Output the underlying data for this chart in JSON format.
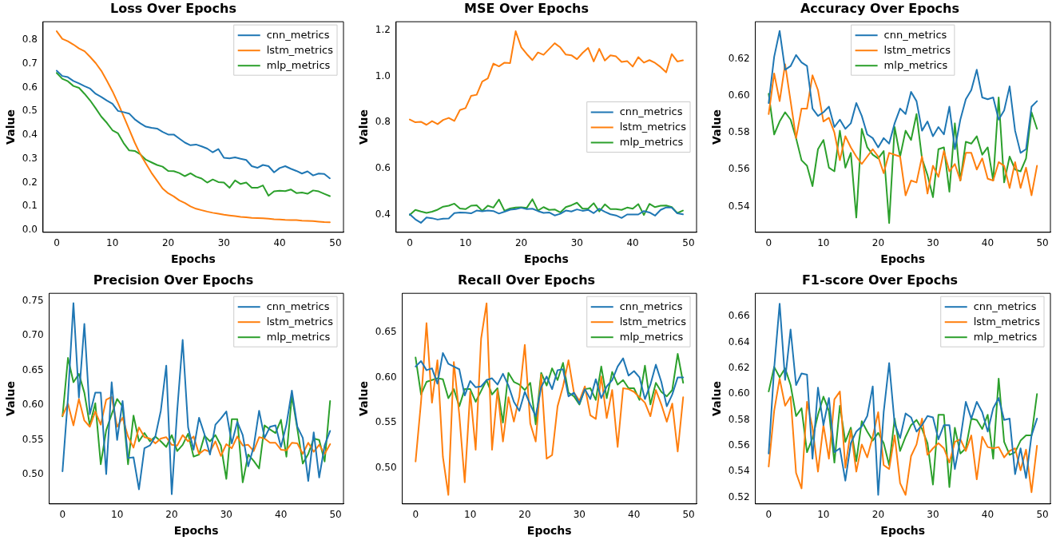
{
  "chart_data": [
    {
      "type": "line",
      "title": "Loss Over Epochs",
      "xlabel": "Epochs",
      "ylabel": "Value",
      "legend": "top right",
      "grid": false,
      "xlim": [
        -2.45,
        51.45
      ],
      "xticks": [
        0,
        10,
        20,
        30,
        40,
        50
      ],
      "ylim": [
        -0.009,
        0.876
      ],
      "yticks": [
        {
          "value": 0,
          "label": "0.0"
        },
        0.1,
        0.2,
        0.3,
        0.4,
        0.5,
        0.6,
        0.7,
        0.8
      ],
      "x": [
        0,
        1,
        2,
        3,
        4,
        5,
        6,
        7,
        8,
        9,
        10,
        11,
        12,
        13,
        14,
        15,
        16,
        17,
        18,
        19,
        20,
        21,
        22,
        23,
        24,
        25,
        26,
        27,
        28,
        29,
        30,
        31,
        32,
        33,
        34,
        35,
        36,
        37,
        38,
        39,
        40,
        41,
        42,
        43,
        44,
        45,
        46,
        47,
        48,
        49
      ],
      "series": [
        {
          "name": "cnn_metrics",
          "color": "#1f77b4",
          "values": [
            0.67,
            0.648,
            0.643,
            0.627,
            0.617,
            0.605,
            0.595,
            0.573,
            0.56,
            0.545,
            0.531,
            0.501,
            0.496,
            0.49,
            0.466,
            0.449,
            0.435,
            0.43,
            0.427,
            0.413,
            0.402,
            0.402,
            0.385,
            0.368,
            0.357,
            0.36,
            0.352,
            0.343,
            0.327,
            0.341,
            0.304,
            0.302,
            0.306,
            0.3,
            0.295,
            0.269,
            0.262,
            0.274,
            0.269,
            0.243,
            0.261,
            0.269,
            0.258,
            0.249,
            0.238,
            0.247,
            0.23,
            0.238,
            0.236,
            0.218
          ]
        },
        {
          "name": "lstm_metrics",
          "color": "#ff7f0e",
          "values": [
            0.836,
            0.804,
            0.794,
            0.78,
            0.764,
            0.752,
            0.728,
            0.702,
            0.67,
            0.628,
            0.584,
            0.534,
            0.479,
            0.424,
            0.368,
            0.319,
            0.28,
            0.241,
            0.208,
            0.175,
            0.155,
            0.142,
            0.125,
            0.114,
            0.1,
            0.09,
            0.084,
            0.078,
            0.073,
            0.069,
            0.065,
            0.062,
            0.059,
            0.056,
            0.054,
            0.052,
            0.051,
            0.05,
            0.048,
            0.046,
            0.045,
            0.043,
            0.042,
            0.042,
            0.04,
            0.039,
            0.038,
            0.036,
            0.034,
            0.033
          ]
        },
        {
          "name": "mlp_metrics",
          "color": "#2ca02c",
          "values": [
            0.661,
            0.636,
            0.626,
            0.606,
            0.598,
            0.573,
            0.545,
            0.512,
            0.477,
            0.451,
            0.42,
            0.407,
            0.366,
            0.335,
            0.333,
            0.319,
            0.296,
            0.285,
            0.274,
            0.267,
            0.249,
            0.248,
            0.24,
            0.227,
            0.239,
            0.225,
            0.217,
            0.2,
            0.213,
            0.202,
            0.2,
            0.178,
            0.209,
            0.194,
            0.2,
            0.178,
            0.178,
            0.188,
            0.145,
            0.163,
            0.166,
            0.164,
            0.171,
            0.156,
            0.158,
            0.153,
            0.167,
            0.163,
            0.153,
            0.143
          ]
        }
      ]
    },
    {
      "type": "line",
      "title": "MSE Over Epochs",
      "xlabel": "Epochs",
      "ylabel": "Value",
      "legend": "right",
      "grid": false,
      "xlim": [
        -2.45,
        51.45
      ],
      "xticks": [
        0,
        10,
        20,
        30,
        40,
        50
      ],
      "ylim": [
        0.325,
        1.236
      ],
      "yticks": [
        0.4,
        0.6,
        0.8,
        {
          "value": 1,
          "label": "1.0"
        },
        1.2
      ],
      "x": [
        0,
        1,
        2,
        3,
        4,
        5,
        6,
        7,
        8,
        9,
        10,
        11,
        12,
        13,
        14,
        15,
        16,
        17,
        18,
        19,
        20,
        21,
        22,
        23,
        24,
        25,
        26,
        27,
        28,
        29,
        30,
        31,
        32,
        33,
        34,
        35,
        36,
        37,
        38,
        39,
        40,
        41,
        42,
        43,
        44,
        45,
        46,
        47,
        48,
        49
      ],
      "series": [
        {
          "name": "cnn_metrics",
          "color": "#1f77b4",
          "values": [
            0.403,
            0.381,
            0.366,
            0.389,
            0.386,
            0.38,
            0.384,
            0.385,
            0.408,
            0.411,
            0.41,
            0.407,
            0.419,
            0.416,
            0.419,
            0.417,
            0.406,
            0.414,
            0.423,
            0.425,
            0.431,
            0.425,
            0.427,
            0.417,
            0.409,
            0.411,
            0.398,
            0.405,
            0.419,
            0.415,
            0.424,
            0.418,
            0.422,
            0.408,
            0.427,
            0.414,
            0.403,
            0.398,
            0.387,
            0.402,
            0.402,
            0.402,
            0.417,
            0.411,
            0.397,
            0.422,
            0.433,
            0.432,
            0.407,
            0.403
          ]
        },
        {
          "name": "lstm_metrics",
          "color": "#ff7f0e",
          "values": [
            0.813,
            0.801,
            0.803,
            0.79,
            0.806,
            0.793,
            0.811,
            0.82,
            0.807,
            0.854,
            0.862,
            0.915,
            0.92,
            0.977,
            0.991,
            1.055,
            1.043,
            1.059,
            1.057,
            1.195,
            1.126,
            1.096,
            1.07,
            1.103,
            1.093,
            1.118,
            1.143,
            1.125,
            1.094,
            1.091,
            1.074,
            1.101,
            1.123,
            1.064,
            1.119,
            1.068,
            1.091,
            1.086,
            1.062,
            1.066,
            1.042,
            1.083,
            1.059,
            1.07,
            1.058,
            1.04,
            1.017,
            1.096,
            1.064,
            1.069
          ]
        },
        {
          "name": "mlp_metrics",
          "color": "#2ca02c",
          "values": [
            0.4,
            0.422,
            0.415,
            0.409,
            0.414,
            0.423,
            0.436,
            0.44,
            0.449,
            0.428,
            0.425,
            0.44,
            0.442,
            0.418,
            0.44,
            0.432,
            0.467,
            0.418,
            0.428,
            0.432,
            0.433,
            0.431,
            0.468,
            0.419,
            0.434,
            0.422,
            0.424,
            0.411,
            0.434,
            0.442,
            0.453,
            0.427,
            0.427,
            0.451,
            0.415,
            0.446,
            0.425,
            0.425,
            0.422,
            0.432,
            0.427,
            0.447,
            0.4,
            0.448,
            0.434,
            0.44,
            0.441,
            0.434,
            0.408,
            0.419
          ]
        }
      ]
    },
    {
      "type": "line",
      "title": "Accuracy Over Epochs",
      "xlabel": "Epochs",
      "ylabel": "Value",
      "legend": "top",
      "grid": false,
      "xlim": [
        -2.45,
        51.45
      ],
      "xticks": [
        0,
        10,
        20,
        30,
        40,
        50
      ],
      "ylim": [
        0.526,
        0.64
      ],
      "yticks": [
        0.54,
        0.56,
        0.58,
        {
          "value": 0.6,
          "label": "0.60"
        },
        0.62
      ],
      "x": [
        0,
        1,
        2,
        3,
        4,
        5,
        6,
        7,
        8,
        9,
        10,
        11,
        12,
        13,
        14,
        15,
        16,
        17,
        18,
        19,
        20,
        21,
        22,
        23,
        24,
        25,
        26,
        27,
        28,
        29,
        30,
        31,
        32,
        33,
        34,
        35,
        36,
        37,
        38,
        39,
        40,
        41,
        42,
        43,
        44,
        45,
        46,
        47,
        48,
        49
      ],
      "series": [
        {
          "name": "cnn_metrics",
          "color": "#1f77b4",
          "values": [
            0.596,
            0.621,
            0.635,
            0.614,
            0.616,
            0.622,
            0.618,
            0.616,
            0.593,
            0.589,
            0.591,
            0.594,
            0.583,
            0.587,
            0.582,
            0.585,
            0.596,
            0.589,
            0.579,
            0.577,
            0.572,
            0.577,
            0.574,
            0.585,
            0.593,
            0.59,
            0.602,
            0.597,
            0.581,
            0.586,
            0.578,
            0.583,
            0.579,
            0.594,
            0.571,
            0.587,
            0.598,
            0.603,
            0.614,
            0.599,
            0.598,
            0.599,
            0.587,
            0.592,
            0.605,
            0.581,
            0.569,
            0.571,
            0.594,
            0.597
          ]
        },
        {
          "name": "lstm_metrics",
          "color": "#ff7f0e",
          "values": [
            0.59,
            0.612,
            0.597,
            0.617,
            0.597,
            0.577,
            0.593,
            0.593,
            0.611,
            0.603,
            0.586,
            0.588,
            0.58,
            0.565,
            0.578,
            0.572,
            0.567,
            0.563,
            0.567,
            0.571,
            0.567,
            0.558,
            0.569,
            0.568,
            0.567,
            0.546,
            0.554,
            0.553,
            0.567,
            0.547,
            0.562,
            0.556,
            0.57,
            0.559,
            0.563,
            0.554,
            0.569,
            0.569,
            0.56,
            0.566,
            0.555,
            0.554,
            0.564,
            0.562,
            0.55,
            0.564,
            0.55,
            0.561,
            0.546,
            0.562
          ]
        },
        {
          "name": "mlp_metrics",
          "color": "#2ca02c",
          "values": [
            0.601,
            0.579,
            0.586,
            0.591,
            0.587,
            0.577,
            0.565,
            0.562,
            0.551,
            0.571,
            0.576,
            0.561,
            0.559,
            0.581,
            0.561,
            0.569,
            0.534,
            0.582,
            0.572,
            0.568,
            0.566,
            0.57,
            0.531,
            0.583,
            0.567,
            0.581,
            0.576,
            0.59,
            0.566,
            0.557,
            0.545,
            0.571,
            0.572,
            0.548,
            0.585,
            0.554,
            0.575,
            0.574,
            0.578,
            0.568,
            0.572,
            0.554,
            0.599,
            0.553,
            0.567,
            0.56,
            0.559,
            0.566,
            0.591,
            0.582
          ]
        }
      ]
    },
    {
      "type": "line",
      "title": "Precision Over Epochs",
      "xlabel": "Epochs",
      "ylabel": "Value",
      "legend": "top right",
      "grid": false,
      "xlim": [
        -2.45,
        51.45
      ],
      "xticks": [
        0,
        10,
        20,
        30,
        40,
        50
      ],
      "ylim": [
        0.458,
        0.761
      ],
      "yticks": [
        {
          "value": 0.5,
          "label": "0.50"
        },
        0.55,
        {
          "value": 0.6,
          "label": "0.60"
        },
        0.65,
        {
          "value": 0.7,
          "label": "0.70"
        },
        0.75
      ],
      "x": [
        0,
        1,
        2,
        3,
        4,
        5,
        6,
        7,
        8,
        9,
        10,
        11,
        12,
        13,
        14,
        15,
        16,
        17,
        18,
        19,
        20,
        21,
        22,
        23,
        24,
        25,
        26,
        27,
        28,
        29,
        30,
        31,
        32,
        33,
        34,
        35,
        36,
        37,
        38,
        39,
        40,
        41,
        42,
        43,
        44,
        45,
        46,
        47,
        48,
        49
      ],
      "series": [
        {
          "name": "cnn_metrics",
          "color": "#1f77b4",
          "values": [
            0.505,
            0.611,
            0.747,
            0.611,
            0.717,
            0.587,
            0.618,
            0.618,
            0.501,
            0.633,
            0.55,
            0.606,
            0.524,
            0.525,
            0.479,
            0.538,
            0.542,
            0.555,
            0.592,
            0.657,
            0.472,
            0.592,
            0.694,
            0.568,
            0.536,
            0.582,
            0.558,
            0.529,
            0.572,
            0.581,
            0.591,
            0.545,
            0.576,
            0.557,
            0.512,
            0.54,
            0.592,
            0.553,
            0.569,
            0.571,
            0.54,
            0.572,
            0.621,
            0.569,
            0.553,
            0.491,
            0.561,
            0.496,
            0.542,
            0.563
          ]
        },
        {
          "name": "lstm_metrics",
          "color": "#ff7f0e",
          "values": [
            0.585,
            0.602,
            0.571,
            0.609,
            0.578,
            0.569,
            0.591,
            0.572,
            0.608,
            0.612,
            0.569,
            0.582,
            0.555,
            0.539,
            0.568,
            0.554,
            0.552,
            0.545,
            0.552,
            0.554,
            0.543,
            0.542,
            0.557,
            0.548,
            0.555,
            0.53,
            0.536,
            0.533,
            0.548,
            0.527,
            0.544,
            0.538,
            0.555,
            0.542,
            0.543,
            0.534,
            0.554,
            0.552,
            0.546,
            0.546,
            0.536,
            0.535,
            0.546,
            0.545,
            0.53,
            0.546,
            0.533,
            0.543,
            0.53,
            0.544
          ]
        },
        {
          "name": "mlp_metrics",
          "color": "#2ca02c",
          "values": [
            0.584,
            0.668,
            0.633,
            0.645,
            0.618,
            0.571,
            0.603,
            0.515,
            0.564,
            0.587,
            0.609,
            0.598,
            0.515,
            0.585,
            0.548,
            0.56,
            0.548,
            0.555,
            0.548,
            0.54,
            0.557,
            0.534,
            0.543,
            0.559,
            0.526,
            0.529,
            0.556,
            0.548,
            0.557,
            0.542,
            0.494,
            0.58,
            0.58,
            0.489,
            0.529,
            0.52,
            0.509,
            0.571,
            0.565,
            0.56,
            0.579,
            0.526,
            0.614,
            0.566,
            0.516,
            0.53,
            0.552,
            0.55,
            0.519,
            0.606
          ]
        }
      ]
    },
    {
      "type": "line",
      "title": "Recall Over Epochs",
      "xlabel": "Epochs",
      "ylabel": "Value",
      "legend": "top right",
      "grid": false,
      "xlim": [
        -2.45,
        51.45
      ],
      "xticks": [
        0,
        10,
        20,
        30,
        40,
        50
      ],
      "ylim": [
        0.46,
        0.693
      ],
      "yticks": [
        {
          "value": 0.5,
          "label": "0.50"
        },
        0.55,
        {
          "value": 0.6,
          "label": "0.60"
        },
        0.65
      ],
      "x": [
        0,
        1,
        2,
        3,
        4,
        5,
        6,
        7,
        8,
        9,
        10,
        11,
        12,
        13,
        14,
        15,
        16,
        17,
        18,
        19,
        20,
        21,
        22,
        23,
        24,
        25,
        26,
        27,
        28,
        29,
        30,
        31,
        32,
        33,
        34,
        35,
        36,
        37,
        38,
        39,
        40,
        41,
        42,
        43,
        44,
        45,
        46,
        47,
        48,
        49
      ],
      "series": [
        {
          "name": "cnn_metrics",
          "color": "#1f77b4",
          "values": [
            0.612,
            0.618,
            0.608,
            0.61,
            0.593,
            0.627,
            0.615,
            0.612,
            0.609,
            0.58,
            0.596,
            0.589,
            0.59,
            0.597,
            0.599,
            0.592,
            0.604,
            0.591,
            0.573,
            0.563,
            0.584,
            0.57,
            0.557,
            0.589,
            0.601,
            0.587,
            0.608,
            0.609,
            0.579,
            0.583,
            0.571,
            0.587,
            0.576,
            0.598,
            0.577,
            0.59,
            0.597,
            0.612,
            0.621,
            0.602,
            0.607,
            0.6,
            0.576,
            0.592,
            0.614,
            0.595,
            0.568,
            0.581,
            0.6,
            0.6
          ]
        },
        {
          "name": "lstm_metrics",
          "color": "#ff7f0e",
          "values": [
            0.507,
            0.573,
            0.66,
            0.572,
            0.619,
            0.512,
            0.47,
            0.617,
            0.559,
            0.484,
            0.584,
            0.52,
            0.643,
            0.682,
            0.52,
            0.586,
            0.529,
            0.578,
            0.551,
            0.579,
            0.636,
            0.549,
            0.529,
            0.603,
            0.51,
            0.514,
            0.568,
            0.59,
            0.619,
            0.583,
            0.574,
            0.59,
            0.558,
            0.554,
            0.601,
            0.555,
            0.586,
            0.523,
            0.588,
            0.587,
            0.584,
            0.578,
            0.572,
            0.557,
            0.586,
            0.57,
            0.551,
            0.571,
            0.518,
            0.578
          ]
        },
        {
          "name": "mlp_metrics",
          "color": "#2ca02c",
          "values": [
            0.622,
            0.581,
            0.595,
            0.597,
            0.599,
            0.598,
            0.577,
            0.587,
            0.568,
            0.587,
            0.587,
            0.573,
            0.585,
            0.597,
            0.581,
            0.588,
            0.55,
            0.605,
            0.595,
            0.592,
            0.586,
            0.594,
            0.548,
            0.605,
            0.591,
            0.61,
            0.597,
            0.616,
            0.583,
            0.579,
            0.57,
            0.587,
            0.588,
            0.575,
            0.612,
            0.577,
            0.606,
            0.592,
            0.597,
            0.588,
            0.588,
            0.575,
            0.613,
            0.57,
            0.594,
            0.584,
            0.579,
            0.586,
            0.626,
            0.594
          ]
        }
      ]
    },
    {
      "type": "line",
      "title": "F1-score Over Epochs",
      "xlabel": "Epochs",
      "ylabel": "Value",
      "legend": "top right",
      "grid": false,
      "xlim": [
        -2.45,
        51.45
      ],
      "xticks": [
        0,
        10,
        20,
        30,
        40,
        50
      ],
      "ylim": [
        0.515,
        0.678
      ],
      "yticks": [
        0.52,
        0.54,
        0.56,
        0.58,
        {
          "value": 0.6,
          "label": "0.60"
        },
        0.62,
        0.64,
        0.66
      ],
      "x": [
        0,
        1,
        2,
        3,
        4,
        5,
        6,
        7,
        8,
        9,
        10,
        11,
        12,
        13,
        14,
        15,
        16,
        17,
        18,
        19,
        20,
        21,
        22,
        23,
        24,
        25,
        26,
        27,
        28,
        29,
        30,
        31,
        32,
        33,
        34,
        35,
        36,
        37,
        38,
        39,
        40,
        41,
        42,
        43,
        44,
        45,
        46,
        47,
        48,
        49
      ],
      "series": [
        {
          "name": "cnn_metrics",
          "color": "#1f77b4",
          "values": [
            0.554,
            0.62,
            0.67,
            0.611,
            0.65,
            0.607,
            0.616,
            0.615,
            0.55,
            0.605,
            0.576,
            0.597,
            0.555,
            0.558,
            0.533,
            0.562,
            0.571,
            0.575,
            0.583,
            0.606,
            0.522,
            0.586,
            0.624,
            0.577,
            0.566,
            0.585,
            0.582,
            0.571,
            0.576,
            0.583,
            0.582,
            0.565,
            0.576,
            0.576,
            0.542,
            0.565,
            0.594,
            0.581,
            0.594,
            0.586,
            0.571,
            0.589,
            0.597,
            0.58,
            0.581,
            0.538,
            0.558,
            0.535,
            0.568,
            0.581
          ]
        },
        {
          "name": "lstm_metrics",
          "color": "#ff7f0e",
          "values": [
            0.544,
            0.587,
            0.612,
            0.591,
            0.598,
            0.539,
            0.527,
            0.594,
            0.574,
            0.54,
            0.576,
            0.55,
            0.596,
            0.602,
            0.543,
            0.572,
            0.54,
            0.561,
            0.551,
            0.567,
            0.586,
            0.545,
            0.542,
            0.568,
            0.531,
            0.522,
            0.552,
            0.561,
            0.581,
            0.553,
            0.558,
            0.562,
            0.558,
            0.547,
            0.563,
            0.565,
            0.556,
            0.568,
            0.534,
            0.567,
            0.559,
            0.558,
            0.559,
            0.551,
            0.556,
            0.558,
            0.541,
            0.557,
            0.524,
            0.56
          ]
        },
        {
          "name": "mlp_metrics",
          "color": "#2ca02c",
          "values": [
            0.602,
            0.621,
            0.613,
            0.62,
            0.607,
            0.583,
            0.589,
            0.555,
            0.566,
            0.584,
            0.598,
            0.587,
            0.547,
            0.591,
            0.563,
            0.574,
            0.548,
            0.579,
            0.571,
            0.564,
            0.57,
            0.562,
            0.545,
            0.581,
            0.556,
            0.567,
            0.576,
            0.58,
            0.573,
            0.562,
            0.53,
            0.584,
            0.584,
            0.528,
            0.574,
            0.554,
            0.558,
            0.581,
            0.58,
            0.573,
            0.584,
            0.55,
            0.612,
            0.563,
            0.553,
            0.555,
            0.564,
            0.568,
            0.568,
            0.6
          ]
        }
      ]
    }
  ]
}
